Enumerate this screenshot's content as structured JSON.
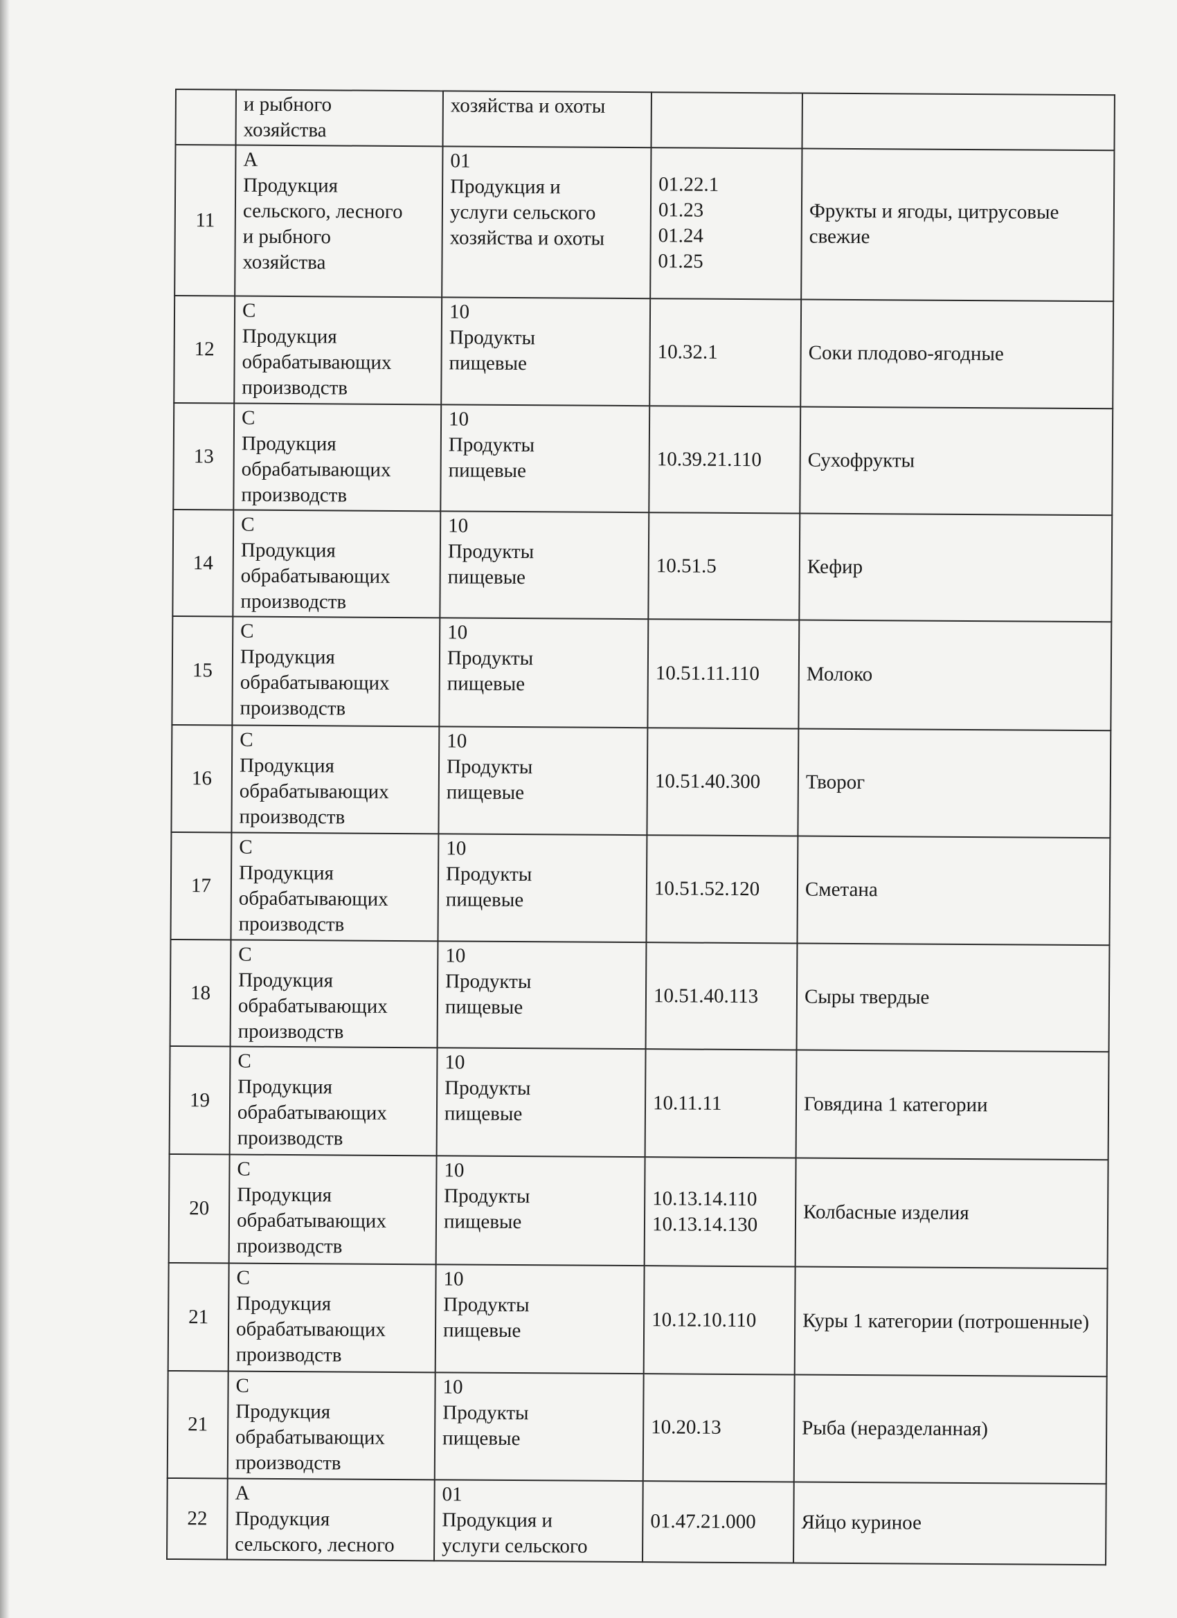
{
  "first_row": {
    "col2": "и рыбного\nхозяйства",
    "col3": "хозяйства и охоты"
  },
  "rows": [
    {
      "n": "11",
      "section": "А\nПродукция\nсельского, лесного\nи рыбного\nхозяйства",
      "class": "01\nПродукция и\nуслуги сельского\nхозяйства и охоты",
      "code": "01.22.1\n01.23\n01.24\n01.25",
      "name": "Фрукты и ягоды, цитрусовые свежие"
    },
    {
      "n": "12",
      "section": "С\nПродукция\nобрабатывающих\nпроизводств",
      "class": "10\nПродукты\nпищевые",
      "code": "10.32.1",
      "name": "Соки плодово-ягодные"
    },
    {
      "n": "13",
      "section": "С\nПродукция\nобрабатывающих\nпроизводств",
      "class": "10\nПродукты\nпищевые",
      "code": "10.39.21.110",
      "name": "Сухофрукты"
    },
    {
      "n": "14",
      "section": "С\nПродукция\nобрабатывающих\nпроизводств",
      "class": "10\nПродукты\nпищевые",
      "code": "10.51.5",
      "name": "Кефир"
    },
    {
      "n": "15",
      "section": "С\nПродукция\nобрабатывающих\nпроизводств",
      "class": "10\nПродукты\nпищевые",
      "code": "10.51.11.110",
      "name": "Молоко"
    },
    {
      "n": "16",
      "section": "С\nПродукция\nобрабатывающих\nпроизводств",
      "class": "10\nПродукты\nпищевые",
      "code": "10.51.40.300",
      "name": "Творог"
    },
    {
      "n": "17",
      "section": "С\nПродукция\nобрабатывающих\nпроизводств",
      "class": "10\nПродукты\nпищевые",
      "code": "10.51.52.120",
      "name": "Сметана"
    },
    {
      "n": "18",
      "section": "С\nПродукция\nобрабатывающих\nпроизводств",
      "class": "10\nПродукты\nпищевые",
      "code": "10.51.40.113",
      "name": "Сыры твердые"
    },
    {
      "n": "19",
      "section": "С\nПродукция\nобрабатывающих\nпроизводств",
      "class": "10\nПродукты\nпищевые",
      "code": "10.11.11",
      "name": "Говядина 1 категории"
    },
    {
      "n": "20",
      "section": "С\nПродукция\nобрабатывающих\nпроизводств",
      "class": "10\nПродукты\nпищевые",
      "code": "10.13.14.110\n10.13.14.130",
      "name": "Колбасные изделия"
    },
    {
      "n": "21",
      "section": "С\nПродукция\nобрабатывающих\nпроизводств",
      "class": "10\nПродукты\nпищевые",
      "code": "10.12.10.110",
      "name": "Куры 1 категории (потрошенные)"
    },
    {
      "n": "21",
      "section": "С\nПродукция\nобрабатывающих\nпроизводств",
      "class": "10\nПродукты\nпищевые",
      "code": "10.20.13",
      "name": "Рыба (неразделанная)"
    },
    {
      "n": "22",
      "section": "А\nПродукция\nсельского, лесного",
      "class": "01\nПродукция и\nуслуги сельского",
      "code": "01.47.21.000",
      "name": "Яйцо куриное"
    }
  ]
}
